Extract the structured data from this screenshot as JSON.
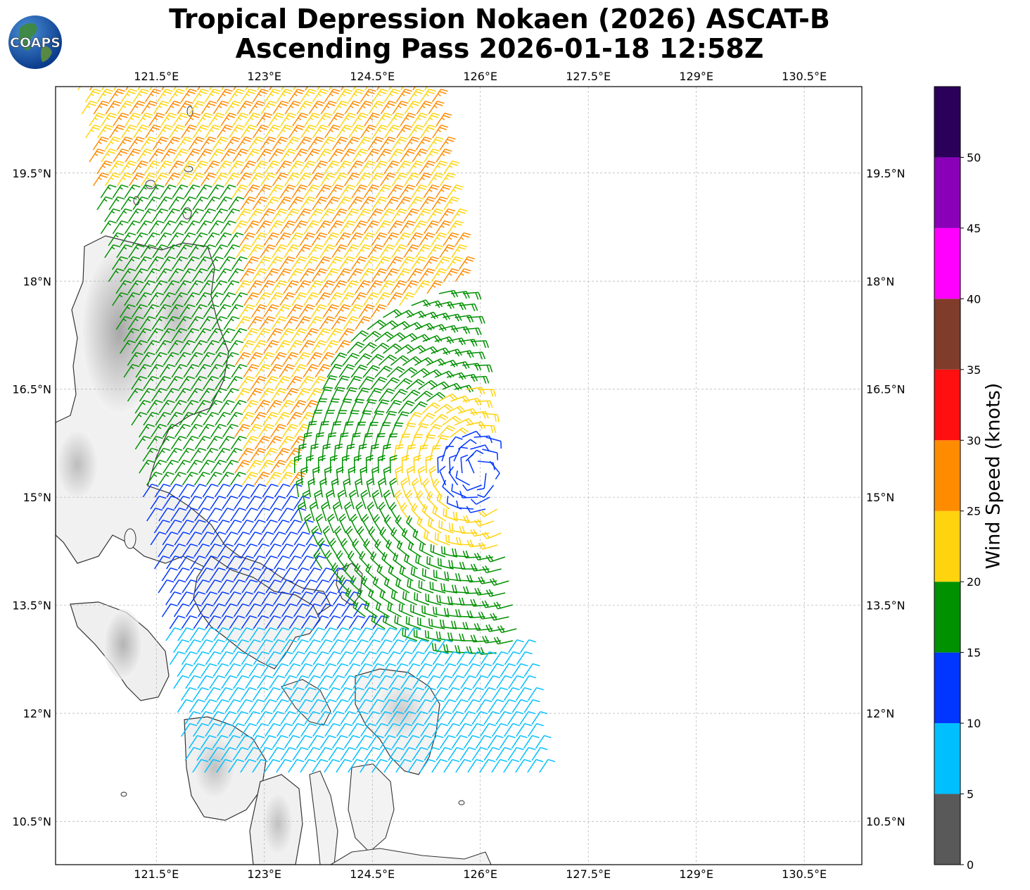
{
  "title_line1": "Tropical Depression Nokaen (2026) ASCAT-B",
  "title_line2": "Ascending Pass 2026-01-18 12:58Z",
  "logo": {
    "text": "COAPS",
    "icon": "globe-logo-icon"
  },
  "map": {
    "lon_ticks": [
      "121.5°E",
      "123°E",
      "124.5°E",
      "126°E",
      "127.5°E",
      "129°E",
      "130.5°E"
    ],
    "lat_ticks": [
      "19.5°N",
      "18°N",
      "16.5°N",
      "15°N",
      "13.5°N",
      "12°N",
      "10.5°N"
    ],
    "lon_values": [
      121.5,
      123,
      124.5,
      126,
      127.5,
      129,
      130.5
    ],
    "lat_values": [
      19.5,
      18,
      16.5,
      15,
      13.5,
      12,
      10.5
    ],
    "lon_range": [
      120.1,
      131.3
    ],
    "lat_range": [
      9.9,
      20.7
    ],
    "storm_center": {
      "lon": 125.95,
      "lat": 15.35
    }
  },
  "colorbar": {
    "label": "Wind Speed (knots)",
    "ticks": [
      "0",
      "5",
      "10",
      "15",
      "20",
      "25",
      "30",
      "35",
      "40",
      "45",
      "50"
    ],
    "bins": [
      {
        "min": 0,
        "max": 5,
        "color": "#595959"
      },
      {
        "min": 5,
        "max": 10,
        "color": "#00bfff"
      },
      {
        "min": 10,
        "max": 15,
        "color": "#0036ff"
      },
      {
        "min": 15,
        "max": 20,
        "color": "#009100"
      },
      {
        "min": 20,
        "max": 25,
        "color": "#ffd40e"
      },
      {
        "min": 25,
        "max": 30,
        "color": "#ff8c00"
      },
      {
        "min": 30,
        "max": 35,
        "color": "#ff0f0f"
      },
      {
        "min": 35,
        "max": 40,
        "color": "#803c2a"
      },
      {
        "min": 40,
        "max": 45,
        "color": "#ff00ff"
      },
      {
        "min": 45,
        "max": 50,
        "color": "#8a00b8"
      },
      {
        "min": 50,
        "max": 55,
        "color": "#2b005a"
      }
    ]
  }
}
